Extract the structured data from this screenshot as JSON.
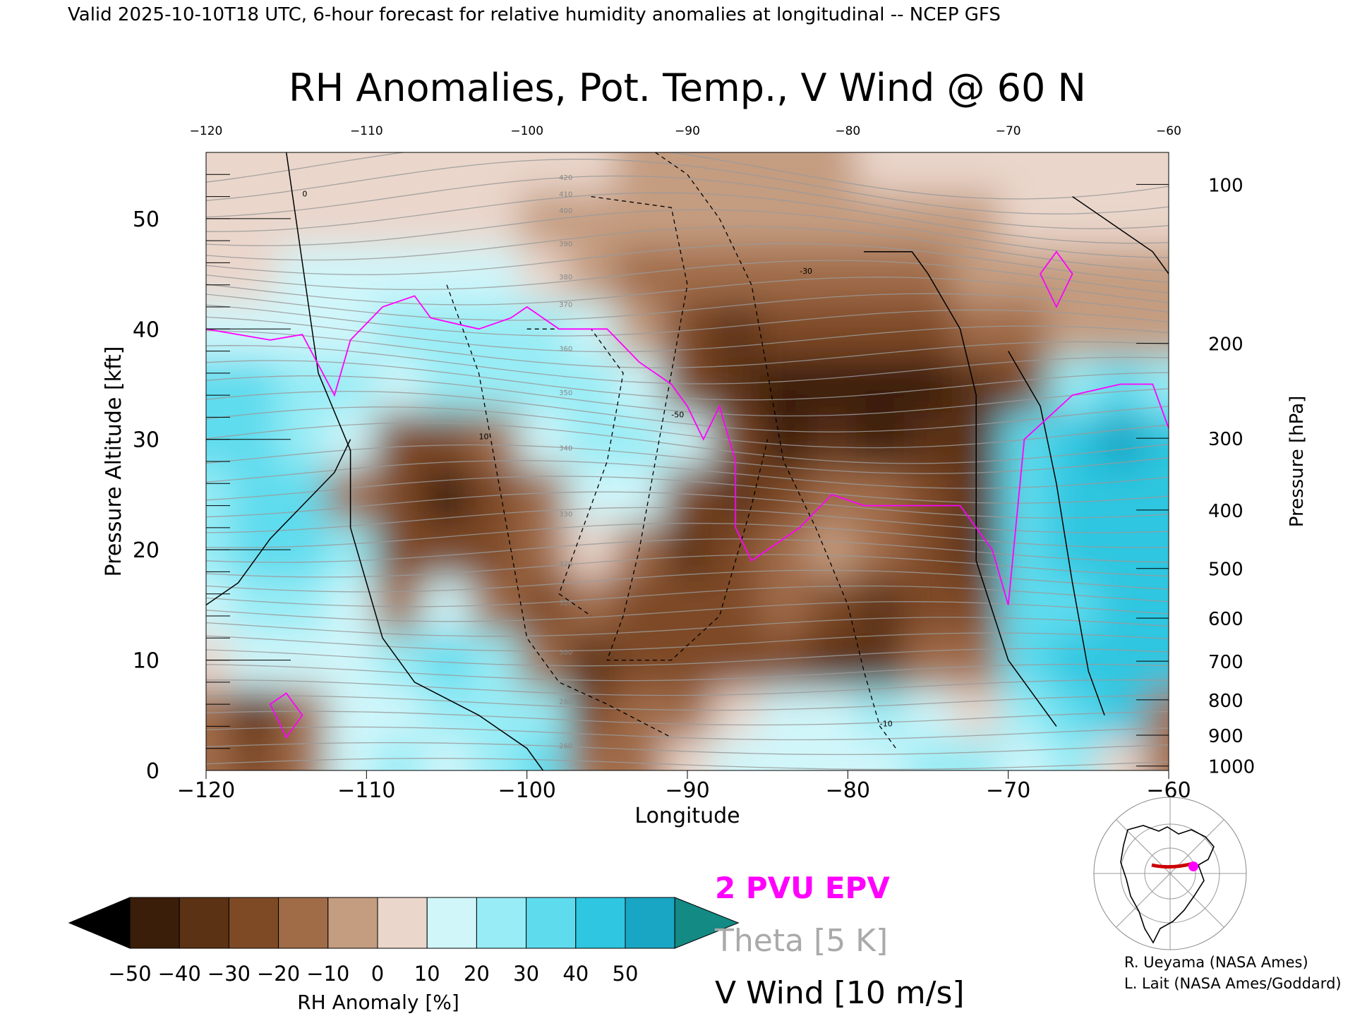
{
  "header": {
    "valid_line": "Valid 2025-10-10T18 UTC, 6-hour forecast for relative humidity anomalies at longitudinal -- NCEP GFS"
  },
  "chart_data": {
    "type": "heatmap",
    "title": "RH Anomalies, Pot. Temp., V Wind @ 60 N",
    "xlabel": "Longitude",
    "ylabel_left": "Pressure Altitude [kft]",
    "ylabel_right": "Pressure [hPa]",
    "xlim": [
      -120,
      -60
    ],
    "ylim": [
      0,
      56
    ],
    "x_ticks": [
      "-120",
      "-110",
      "-100",
      "-90",
      "-80",
      "-70",
      "-60"
    ],
    "y_ticks": [
      "0",
      "10",
      "20",
      "30",
      "40",
      "50"
    ],
    "pressure_ticks": [
      {
        "label": "100",
        "kft": 53.1
      },
      {
        "label": "200",
        "kft": 38.7
      },
      {
        "label": "300",
        "kft": 30.1
      },
      {
        "label": "400",
        "kft": 23.6
      },
      {
        "label": "500",
        "kft": 18.3
      },
      {
        "label": "600",
        "kft": 13.8
      },
      {
        "label": "700",
        "kft": 9.9
      },
      {
        "label": "800",
        "kft": 6.4
      },
      {
        "label": "900",
        "kft": 3.2
      },
      {
        "label": "1000",
        "kft": 0.4
      }
    ],
    "colorbar": {
      "label": "RH Anomaly [%]",
      "ticks": [
        "-50",
        "-40",
        "-30",
        "-20",
        "-10",
        "0",
        "10",
        "20",
        "30",
        "40",
        "50"
      ],
      "colors": [
        "#3a1e09",
        "#5c3214",
        "#7e4a25",
        "#a06c48",
        "#c49c80",
        "#ead6cb",
        "#d0f6fa",
        "#98ecf5",
        "#5edcee",
        "#2ec6e0",
        "#18a6c4"
      ],
      "under_color": "#000000",
      "over_color": "#138a83"
    },
    "rh_anomaly_grid": {
      "x": [
        -120,
        -117,
        -114,
        -111,
        -108,
        -105,
        -102,
        -99,
        -96,
        -93,
        -90,
        -87,
        -84,
        -81,
        -78,
        -75,
        -72,
        -69,
        -66,
        -63,
        -60
      ],
      "y": [
        1,
        5,
        10,
        15,
        20,
        25,
        30,
        35,
        40,
        45,
        50,
        55
      ],
      "z": [
        [
          -15,
          -25,
          -15,
          10,
          20,
          10,
          20,
          30,
          -20,
          -15,
          5,
          10,
          10,
          15,
          15,
          20,
          20,
          15,
          25,
          5,
          -15
        ],
        [
          -20,
          -35,
          -20,
          10,
          15,
          20,
          20,
          25,
          -30,
          -20,
          -20,
          5,
          10,
          10,
          20,
          15,
          5,
          25,
          35,
          40,
          -20
        ],
        [
          5,
          10,
          10,
          15,
          25,
          30,
          20,
          -15,
          -35,
          -25,
          -30,
          -25,
          -30,
          -35,
          -40,
          -15,
          -15,
          30,
          40,
          45,
          40
        ],
        [
          15,
          25,
          20,
          15,
          -20,
          15,
          -15,
          -25,
          -20,
          -30,
          -25,
          -25,
          -20,
          -25,
          -35,
          -30,
          -25,
          30,
          35,
          40,
          40
        ],
        [
          25,
          35,
          30,
          20,
          -25,
          -30,
          -25,
          -15,
          5,
          -20,
          -35,
          -25,
          -20,
          -10,
          -15,
          -30,
          -40,
          35,
          40,
          45,
          45
        ],
        [
          25,
          35,
          30,
          -20,
          -30,
          -45,
          -30,
          -15,
          10,
          15,
          -30,
          -35,
          -25,
          -15,
          -20,
          -30,
          -35,
          30,
          40,
          45,
          40
        ],
        [
          30,
          35,
          25,
          10,
          -25,
          -30,
          -20,
          15,
          20,
          20,
          10,
          -30,
          -45,
          -40,
          -45,
          -40,
          -35,
          30,
          40,
          50,
          45
        ],
        [
          30,
          30,
          25,
          20,
          15,
          20,
          20,
          20,
          20,
          15,
          -25,
          -40,
          -50,
          -50,
          -50,
          -45,
          -40,
          -25,
          25,
          30,
          20
        ],
        [
          10,
          10,
          10,
          15,
          20,
          25,
          20,
          20,
          15,
          -10,
          -30,
          -35,
          -30,
          -30,
          -30,
          -25,
          -20,
          -15,
          -10,
          -5,
          -10
        ],
        [
          5,
          5,
          10,
          10,
          10,
          15,
          10,
          5,
          -5,
          -15,
          -20,
          -20,
          -20,
          -20,
          -20,
          -15,
          -10,
          -10,
          -5,
          -5,
          -5
        ],
        [
          5,
          5,
          5,
          5,
          0,
          0,
          0,
          -5,
          -5,
          -10,
          -10,
          -10,
          -10,
          -10,
          -5,
          -5,
          -5,
          0,
          0,
          0,
          0
        ],
        [
          0,
          0,
          0,
          0,
          0,
          0,
          0,
          0,
          0,
          -5,
          -5,
          -5,
          -5,
          -5,
          0,
          0,
          0,
          0,
          0,
          0,
          0
        ]
      ]
    },
    "theta_labels": [
      "260",
      "280",
      "300",
      "310",
      "320",
      "330",
      "340",
      "350",
      "360",
      "370",
      "380",
      "390",
      "400",
      "410",
      "420"
    ],
    "vwind_labels": [
      "0",
      "10",
      "-10",
      "-30",
      "-50"
    ],
    "legend": [
      {
        "name": "2 PVU EPV",
        "color": "#ff00ff"
      },
      {
        "name": "Theta [5 K]",
        "color": "#aaaaaa"
      },
      {
        "name": "V Wind [10 m/s]",
        "color": "#000000"
      }
    ]
  },
  "credits": {
    "line1": "R. Ueyama (NASA Ames)",
    "line2": "L. Lait (NASA Ames/Goddard)"
  }
}
